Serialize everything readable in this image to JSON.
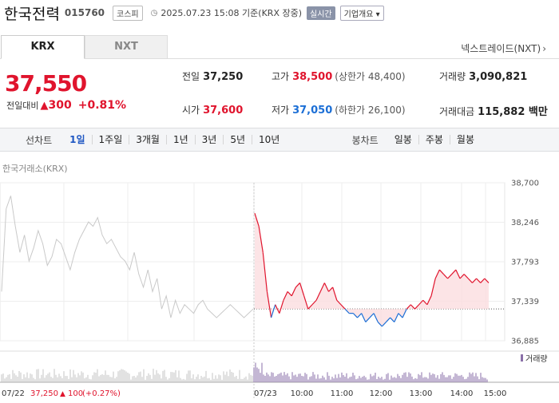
{
  "header": {
    "name": "한국전력",
    "code": "015760",
    "market": "코스피",
    "clock_icon": "clock-icon",
    "timestamp": "2025.07.23 15:08 기준(KRX 장중)",
    "realtime": "실시간",
    "overview": "기업개요 ▾"
  },
  "tabs": {
    "krx": "KRX",
    "nxt": "NXT",
    "nxt_link": "넥스트레이드(NXT)",
    "nxt_link_icon": "chevron-right-icon"
  },
  "quote": {
    "price": "37,550",
    "change_label": "전일대비",
    "change_amount": "300",
    "change_rate": "+0.81%",
    "up_color": "#e0142d",
    "down_color": "#1c6fd6"
  },
  "stats": {
    "prev_label": "전일",
    "prev": "37,250",
    "high_label": "고가",
    "high": "38,500",
    "upper_limit": "(상한가 48,400)",
    "volume_label": "거래량",
    "volume": "3,090,821",
    "open_label": "시가",
    "open": "37,600",
    "low_label": "저가",
    "low": "37,050",
    "lower_limit": "(하한가 26,100)",
    "value_label": "거래대금",
    "value": "115,882 백만"
  },
  "period": {
    "line_title": "선차트",
    "line_options": [
      "1일",
      "1주일",
      "3개월",
      "1년",
      "3년",
      "5년",
      "10년"
    ],
    "selected": "1일",
    "candle_title": "봉차트",
    "candle_options": [
      "일봉",
      "주봉",
      "월봉"
    ]
  },
  "chart_label": "한국거래소(KRX)",
  "chart_data": {
    "type": "line",
    "y_ticks": [
      "38,700",
      "38,246",
      "37,793",
      "37,339",
      "36,885"
    ],
    "ylim": [
      36885,
      38700
    ],
    "baseline": 37250,
    "prev_day": {
      "date": "07/22",
      "summary_close": "37,250",
      "summary_change": "100",
      "summary_rate": "(+0.27%)",
      "values": [
        37450,
        38400,
        38550,
        38200,
        37900,
        38100,
        37800,
        37950,
        38150,
        38000,
        37750,
        37850,
        38050,
        38000,
        37850,
        37700,
        37900,
        38050,
        38150,
        38250,
        38200,
        38300,
        38100,
        38000,
        38050,
        37950,
        37850,
        37800,
        37700,
        37900,
        37650,
        37500,
        37700,
        37450,
        37600,
        37250,
        37400,
        37150,
        37350,
        37200,
        37300,
        37250,
        37200,
        37300,
        37350,
        37250,
        37200,
        37150,
        37200,
        37250,
        37300,
        37250,
        37200,
        37150,
        37200,
        37250
      ]
    },
    "today": {
      "date": "07/23",
      "x_ticks": [
        "10:00",
        "11:00",
        "12:00",
        "13:00",
        "14:00",
        "15:00"
      ],
      "values": [
        38350,
        38200,
        37900,
        37450,
        37150,
        37300,
        37200,
        37350,
        37450,
        37400,
        37500,
        37550,
        37400,
        37250,
        37300,
        37350,
        37450,
        37550,
        37450,
        37500,
        37350,
        37300,
        37250,
        37200,
        37200,
        37150,
        37200,
        37100,
        37150,
        37200,
        37100,
        37050,
        37100,
        37150,
        37100,
        37200,
        37150,
        37250,
        37300,
        37250,
        37300,
        37350,
        37300,
        37400,
        37600,
        37700,
        37650,
        37600,
        37650,
        37700,
        37600,
        37650,
        37600,
        37550,
        37600,
        37550,
        37600,
        37550
      ]
    },
    "volume_label": "거래량"
  }
}
